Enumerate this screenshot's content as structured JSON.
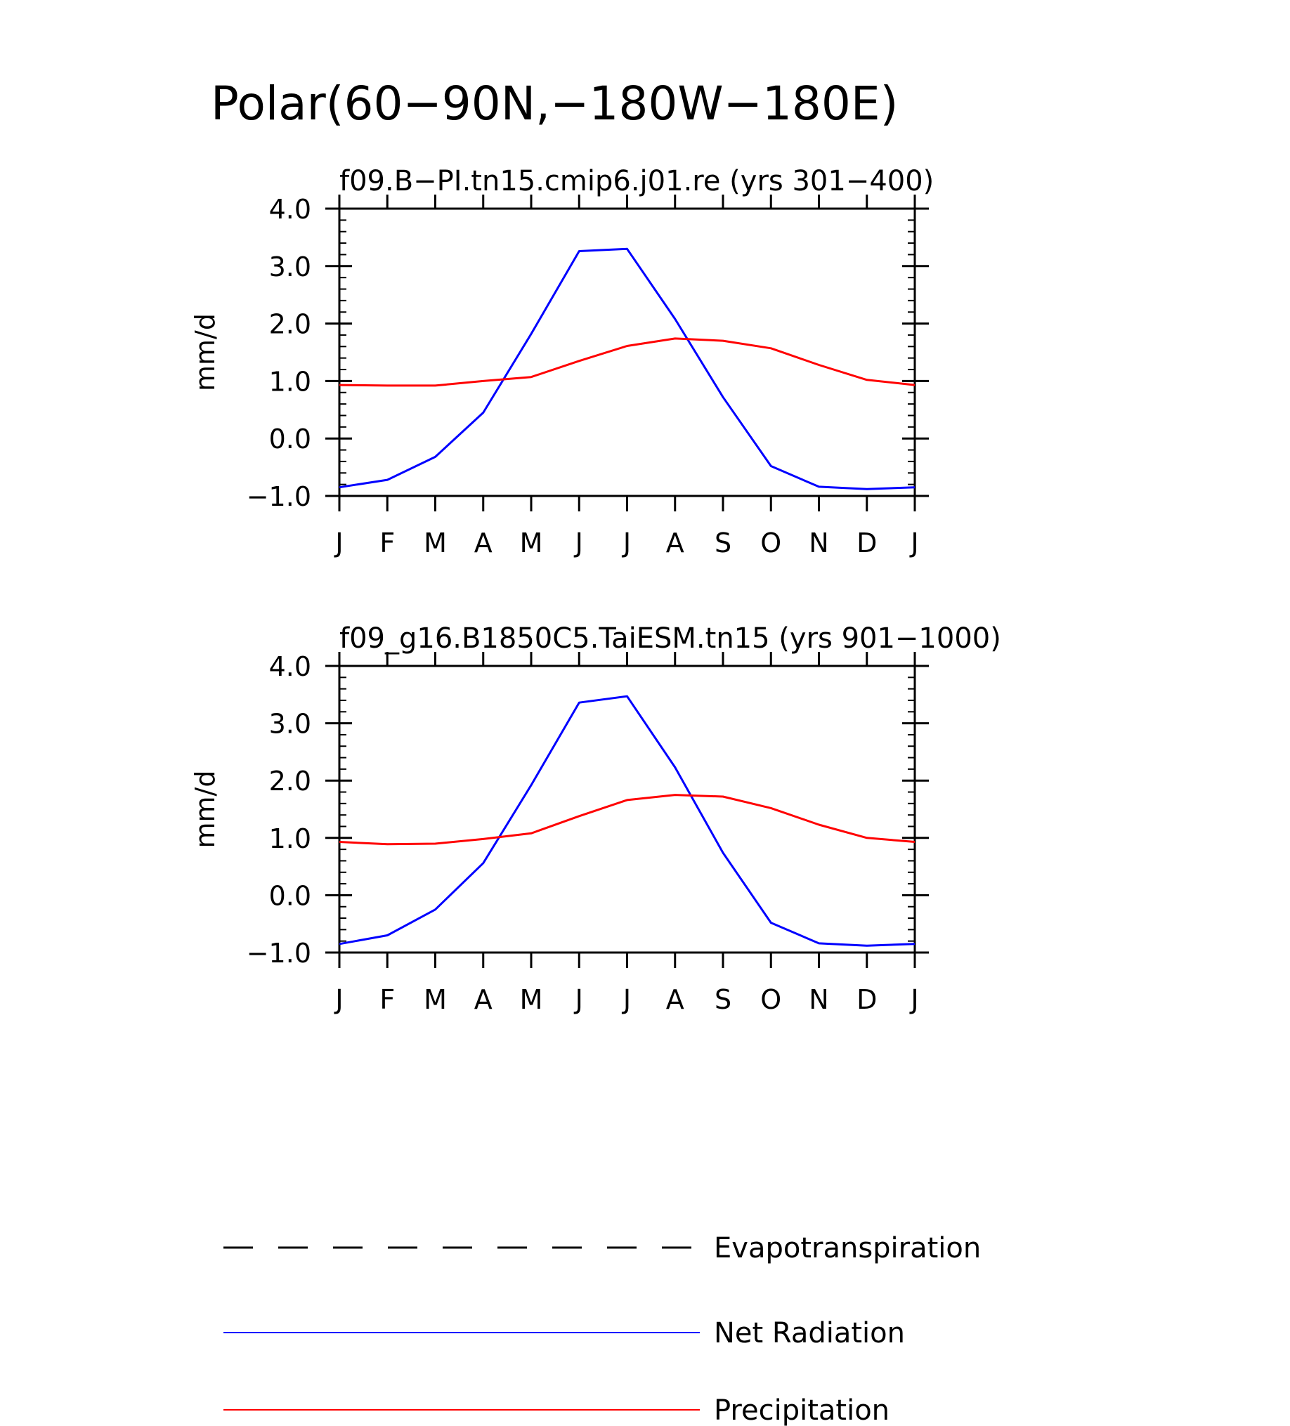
{
  "figure": {
    "title": "Polar(60−90N,−180W−180E)"
  },
  "colors": {
    "net_radiation": "#0000ff",
    "precipitation": "#ff0000",
    "evapotranspiration": "#000000",
    "axes": "#000000"
  },
  "legend": {
    "placement": "bottom",
    "items": [
      {
        "label": "Evapotranspiration",
        "color": "#000000",
        "style": "dashed"
      },
      {
        "label": "Net Radiation",
        "color": "#0000ff",
        "style": "solid"
      },
      {
        "label": "Precipitation",
        "color": "#ff0000",
        "style": "solid"
      }
    ]
  },
  "chart_data": [
    {
      "type": "line",
      "title": "f09.B−PI.tn15.cmip6.j01.re (yrs 301−400)",
      "xlabel": "",
      "ylabel": "mm/d",
      "categories": [
        "J",
        "F",
        "M",
        "A",
        "M",
        "J",
        "J",
        "A",
        "S",
        "O",
        "N",
        "D",
        "J"
      ],
      "ylim": [
        -1.0,
        4.0
      ],
      "yticks": [
        "−1.0",
        "0.0",
        "1.0",
        "2.0",
        "3.0",
        "4.0"
      ],
      "grid": false,
      "series": [
        {
          "name": "Net Radiation",
          "color": "#0000ff",
          "values": [
            -0.85,
            -0.72,
            -0.32,
            0.45,
            1.82,
            3.26,
            3.3,
            2.08,
            0.72,
            -0.48,
            -0.84,
            -0.88,
            -0.85
          ]
        },
        {
          "name": "Precipitation",
          "color": "#ff0000",
          "values": [
            0.93,
            0.92,
            0.92,
            1.0,
            1.07,
            1.35,
            1.61,
            1.74,
            1.7,
            1.57,
            1.28,
            1.02,
            0.93
          ]
        }
      ]
    },
    {
      "type": "line",
      "title": "f09_g16.B1850C5.TaiESM.tn15 (yrs 901−1000)",
      "xlabel": "",
      "ylabel": "mm/d",
      "categories": [
        "J",
        "F",
        "M",
        "A",
        "M",
        "J",
        "J",
        "A",
        "S",
        "O",
        "N",
        "D",
        "J"
      ],
      "ylim": [
        -1.0,
        4.0
      ],
      "yticks": [
        "−1.0",
        "0.0",
        "1.0",
        "2.0",
        "3.0",
        "4.0"
      ],
      "grid": false,
      "series": [
        {
          "name": "Net Radiation",
          "color": "#0000ff",
          "values": [
            -0.85,
            -0.7,
            -0.25,
            0.56,
            1.92,
            3.36,
            3.47,
            2.23,
            0.74,
            -0.48,
            -0.84,
            -0.88,
            -0.85
          ]
        },
        {
          "name": "Precipitation",
          "color": "#ff0000",
          "values": [
            0.93,
            0.89,
            0.9,
            0.98,
            1.08,
            1.38,
            1.66,
            1.75,
            1.72,
            1.52,
            1.23,
            1.0,
            0.93
          ]
        }
      ]
    }
  ]
}
